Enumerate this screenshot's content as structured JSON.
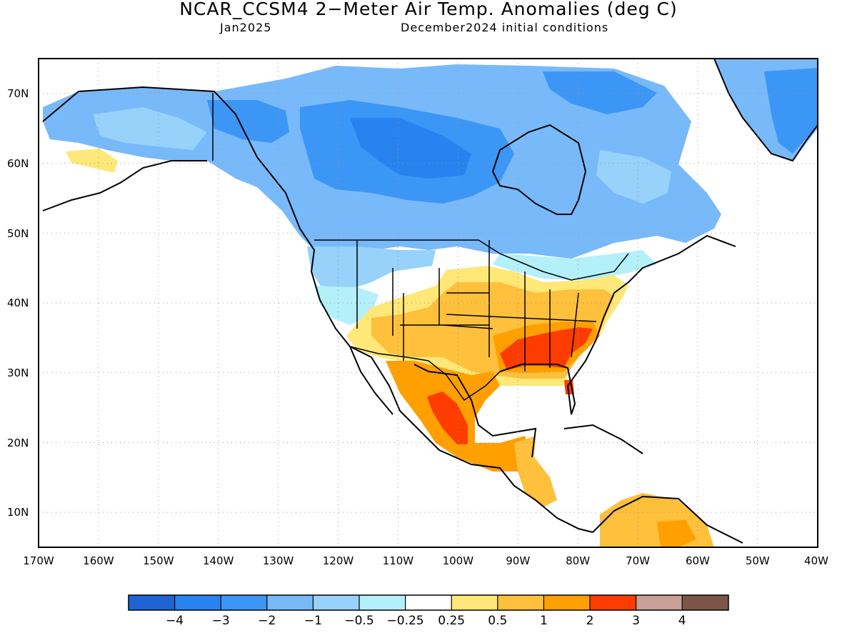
{
  "title": "NCAR_CCSM4 2−Meter Air Temp. Anomalies (deg C)",
  "subtitle_left": "Jan2025",
  "subtitle_right": "December2024 initial conditions",
  "map": {
    "lon_range": [
      -170,
      -40
    ],
    "lat_range": [
      5,
      75
    ],
    "lat_ticks": [
      "70N",
      "60N",
      "50N",
      "40N",
      "30N",
      "20N",
      "10N"
    ],
    "lon_ticks": [
      "170W",
      "160W",
      "150W",
      "140W",
      "130W",
      "120W",
      "110W",
      "100W",
      "90W",
      "80W",
      "70W",
      "60W",
      "50W",
      "40W"
    ],
    "grid": "dotted"
  },
  "colorbar": {
    "colors": [
      "#1e64d2",
      "#2882f0",
      "#3c96f5",
      "#78b9fa",
      "#96d2fa",
      "#b4f0fa",
      "#ffffff",
      "#ffe878",
      "#ffc03c",
      "#ffa000",
      "#ff3c00",
      "#c8a096",
      "#7d5546"
    ],
    "labels": [
      "−4",
      "−3",
      "−2",
      "−1",
      "−0.5",
      "−0.25",
      "0.25",
      "0.5",
      "1",
      "2",
      "3",
      "4"
    ]
  }
}
